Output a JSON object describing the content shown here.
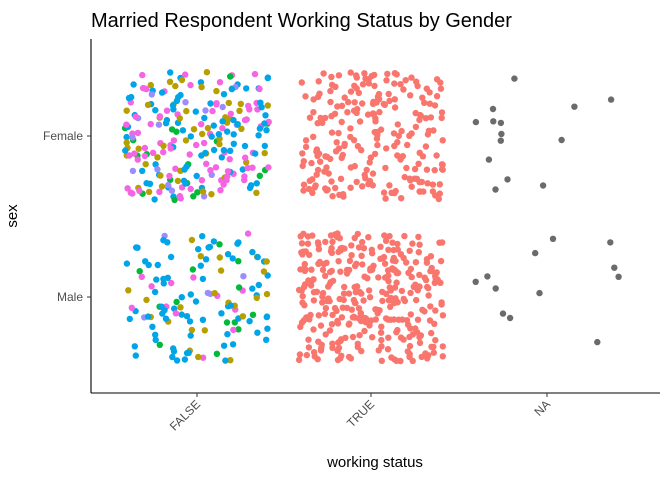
{
  "chart_data": {
    "type": "scatter",
    "subtype": "jitter",
    "title": "Married Respondent Working Status by Gender",
    "xlabel": "working status",
    "ylabel": "sex",
    "x_categories": [
      "FALSE",
      "TRUE",
      "NA"
    ],
    "y_categories": [
      "Male",
      "Female"
    ],
    "grid": false,
    "legend": "none",
    "x_tick_rotation_deg": 45,
    "colors": {
      "red": "#F8766D",
      "olive": "#B79F00",
      "green": "#00BA38",
      "teal": "#00BFC4",
      "blue": "#00A5E8",
      "purple": "#9C8DFF",
      "magenta": "#F564E3",
      "grey": "#6B6B6B",
      "axis": "#000000"
    },
    "groups": [
      {
        "x": "FALSE",
        "y": "Female",
        "count": 240,
        "color_mix": {
          "magenta": 0.34,
          "blue": 0.27,
          "olive": 0.24,
          "green": 0.1,
          "purple": 0.05
        }
      },
      {
        "x": "FALSE",
        "y": "Male",
        "count": 130,
        "color_mix": {
          "blue": 0.55,
          "olive": 0.2,
          "magenta": 0.14,
          "green": 0.08,
          "purple": 0.03
        }
      },
      {
        "x": "TRUE",
        "y": "Female",
        "count": 230,
        "color_mix": {
          "red": 1.0
        }
      },
      {
        "x": "TRUE",
        "y": "Male",
        "count": 330,
        "color_mix": {
          "red": 1.0
        }
      },
      {
        "x": "NA",
        "y": "Female",
        "count": 14,
        "color_mix": {
          "grey": 1.0
        }
      },
      {
        "x": "NA",
        "y": "Male",
        "count": 12,
        "color_mix": {
          "grey": 1.0
        }
      }
    ]
  }
}
